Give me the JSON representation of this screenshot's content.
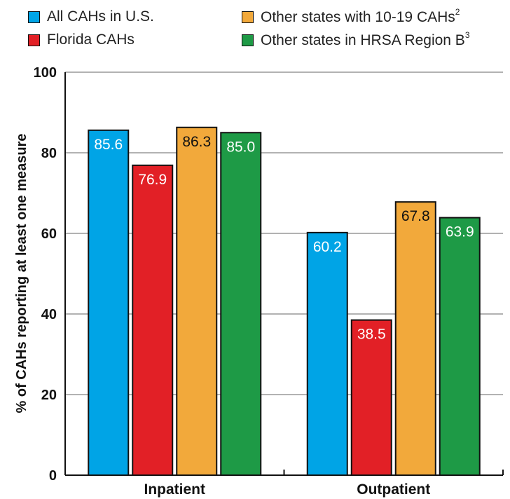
{
  "chart_data": {
    "type": "bar",
    "categories": [
      "Inpatient",
      "Outpatient"
    ],
    "series": [
      {
        "name": "All CAHs in U.S.",
        "color": "#00a4e6",
        "label_color": "#ffffff",
        "values": [
          85.6,
          60.2
        ]
      },
      {
        "name": "Florida CAHs",
        "color": "#e22026",
        "label_color": "#ffffff",
        "values": [
          76.9,
          38.5
        ]
      },
      {
        "name": "Other states with 10-19 CAHs",
        "sup": "2",
        "color": "#f2a93b",
        "label_color": "#111111",
        "values": [
          86.3,
          67.8
        ]
      },
      {
        "name": "Other states in HRSA Region B",
        "sup": "3",
        "color": "#1e9a46",
        "label_color": "#ffffff",
        "values": [
          85.0,
          63.9
        ]
      }
    ],
    "ylabel": "% of CAHs reporting at least one measure",
    "ylim": [
      0,
      100
    ],
    "yticks": [
      "0",
      "20",
      "40",
      "60",
      "80",
      "100"
    ],
    "grid": true,
    "legend": "top"
  }
}
